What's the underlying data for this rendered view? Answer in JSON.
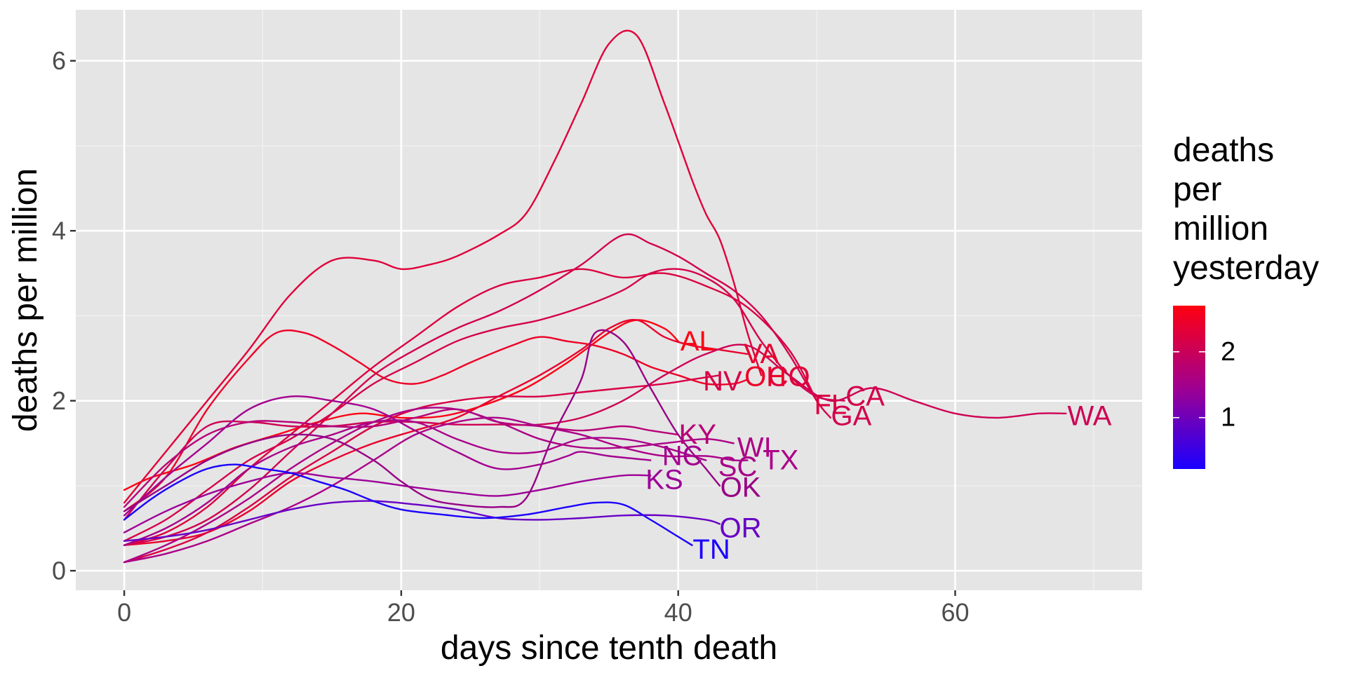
{
  "chart_data": {
    "type": "line",
    "xlabel": "days since tenth death",
    "ylabel": "deaths per million",
    "xlim": [
      -3.5,
      73.5
    ],
    "ylim": [
      -0.23,
      6.6
    ],
    "x_ticks": [
      0,
      20,
      40,
      60
    ],
    "y_ticks": [
      0,
      2,
      4,
      6
    ],
    "grid": true,
    "legend": {
      "title_lines": [
        "deaths",
        "per",
        "million",
        "yesterday"
      ],
      "type": "colorbar",
      "placement": "right",
      "range": [
        0.22,
        2.7
      ],
      "ticks": [
        1,
        2
      ],
      "color_low": "#1a00ff",
      "color_high": "#ff0010"
    },
    "series": [
      {
        "name": "AL",
        "color": "#fe0012",
        "x": [
          0,
          2,
          5,
          8,
          11,
          14,
          17,
          20,
          23,
          26,
          29,
          32,
          35,
          37,
          39,
          40
        ],
        "y": [
          0.95,
          1.1,
          1.25,
          1.45,
          1.6,
          1.75,
          1.85,
          1.8,
          1.82,
          1.95,
          2.15,
          2.45,
          2.8,
          2.95,
          2.85,
          2.7
        ]
      },
      {
        "name": "VA",
        "color": "#e8002e",
        "x": [
          0,
          3,
          6,
          9,
          12,
          15,
          18,
          21,
          24,
          27,
          30,
          33,
          35,
          37,
          39,
          41,
          43,
          45
        ],
        "y": [
          0.3,
          0.35,
          0.45,
          0.7,
          1.05,
          1.3,
          1.5,
          1.65,
          1.8,
          2.05,
          2.3,
          2.6,
          2.85,
          2.95,
          2.75,
          2.65,
          2.6,
          2.55
        ]
      },
      {
        "name": "OH",
        "color": "#ee0026",
        "x": [
          0,
          3,
          6,
          9,
          11,
          13,
          15,
          17,
          19,
          21,
          23,
          25,
          28,
          30,
          32,
          34,
          36,
          38,
          40,
          42,
          44,
          45
        ],
        "y": [
          0.7,
          1.1,
          1.9,
          2.5,
          2.8,
          2.8,
          2.65,
          2.45,
          2.25,
          2.2,
          2.3,
          2.45,
          2.65,
          2.75,
          2.7,
          2.65,
          2.55,
          2.4,
          2.3,
          2.2,
          2.2,
          2.25
        ]
      },
      {
        "name": "CO",
        "color": "#e0003a",
        "x": [
          0,
          3,
          6,
          9,
          12,
          15,
          18,
          20,
          22,
          24,
          27,
          29,
          31,
          33,
          35,
          37,
          39,
          41,
          42,
          43,
          44,
          45,
          46
        ],
        "y": [
          0.8,
          1.4,
          2.0,
          2.6,
          3.25,
          3.65,
          3.65,
          3.55,
          3.6,
          3.7,
          3.95,
          4.2,
          4.8,
          5.5,
          6.2,
          6.3,
          5.5,
          4.6,
          4.2,
          3.9,
          3.4,
          2.8,
          2.3
        ]
      },
      {
        "name": "NV",
        "color": "#d80045",
        "x": [
          0,
          3,
          6,
          9,
          12,
          15,
          18,
          21,
          24,
          27,
          30,
          33,
          36,
          39,
          41,
          43
        ],
        "y": [
          0.1,
          0.25,
          0.45,
          0.75,
          1.1,
          1.4,
          1.7,
          1.9,
          2.0,
          2.05,
          2.05,
          2.1,
          2.15,
          2.2,
          2.25,
          2.3
        ]
      },
      {
        "name": "FL",
        "color": "#db0040",
        "x": [
          0,
          3,
          6,
          9,
          12,
          15,
          18,
          21,
          24,
          27,
          30,
          33,
          36,
          39,
          42,
          45,
          48,
          50
        ],
        "y": [
          0.3,
          0.45,
          0.75,
          1.2,
          1.6,
          2.0,
          2.4,
          2.75,
          3.1,
          3.35,
          3.45,
          3.55,
          3.45,
          3.5,
          3.35,
          3.1,
          2.6,
          2.0
        ]
      },
      {
        "name": "CA",
        "color": "#d4004b",
        "x": [
          0,
          3,
          6,
          9,
          12,
          15,
          18,
          21,
          24,
          27,
          30,
          33,
          36,
          38,
          40,
          42,
          44,
          46,
          48,
          50,
          52
        ],
        "y": [
          0.35,
          0.6,
          0.95,
          1.3,
          1.55,
          1.85,
          2.2,
          2.45,
          2.7,
          2.85,
          2.95,
          3.1,
          3.3,
          3.5,
          3.55,
          3.45,
          3.2,
          2.7,
          2.3,
          2.05,
          2.0
        ]
      },
      {
        "name": "GA",
        "color": "#d2004e",
        "x": [
          0,
          3,
          6,
          9,
          12,
          15,
          18,
          21,
          24,
          27,
          30,
          33,
          36,
          38,
          40,
          42,
          44,
          46,
          48,
          50,
          51
        ],
        "y": [
          0.3,
          0.4,
          0.6,
          0.95,
          1.4,
          1.85,
          2.3,
          2.6,
          2.85,
          3.05,
          3.3,
          3.6,
          3.95,
          3.85,
          3.7,
          3.5,
          3.3,
          3.0,
          2.55,
          2.0,
          1.8
        ]
      },
      {
        "name": "WA",
        "color": "#ce0054",
        "x": [
          0,
          3,
          6,
          9,
          12,
          15,
          18,
          21,
          24,
          27,
          30,
          33,
          36,
          39,
          42,
          45,
          48,
          51,
          54,
          57,
          60,
          63,
          66,
          68
        ],
        "y": [
          0.6,
          1.2,
          1.7,
          1.75,
          1.7,
          1.7,
          1.75,
          1.75,
          1.72,
          1.72,
          1.72,
          1.8,
          2.0,
          2.3,
          2.55,
          2.65,
          2.3,
          2.0,
          2.15,
          2.0,
          1.85,
          1.8,
          1.85,
          1.85
        ]
      },
      {
        "name": "KY",
        "color": "#b70077",
        "x": [
          0,
          3,
          6,
          9,
          12,
          15,
          18,
          21,
          24,
          27,
          30,
          33,
          36,
          38,
          40
        ],
        "y": [
          0.75,
          1.25,
          1.6,
          1.75,
          1.75,
          1.7,
          1.7,
          1.8,
          1.9,
          1.75,
          1.7,
          1.65,
          1.7,
          1.65,
          1.6
        ]
      },
      {
        "name": "WI",
        "color": "#ad0085",
        "x": [
          0,
          3,
          6,
          9,
          12,
          15,
          18,
          21,
          24,
          27,
          30,
          33,
          36,
          39,
          42,
          44
        ],
        "y": [
          0.1,
          0.3,
          0.55,
          0.85,
          1.2,
          1.5,
          1.75,
          1.9,
          1.9,
          1.75,
          1.55,
          1.45,
          1.45,
          1.5,
          1.55,
          1.5
        ]
      },
      {
        "name": "TX",
        "color": "#ab0088",
        "x": [
          0,
          3,
          6,
          9,
          12,
          15,
          18,
          21,
          24,
          27,
          30,
          33,
          36,
          39,
          42,
          44,
          45
        ],
        "y": [
          0.1,
          0.2,
          0.35,
          0.55,
          0.75,
          1.0,
          1.3,
          1.6,
          1.75,
          1.8,
          1.7,
          1.6,
          1.45,
          1.35,
          1.35,
          1.3,
          1.3
        ]
      },
      {
        "name": "SC",
        "color": "#a90089",
        "x": [
          0,
          3,
          6,
          9,
          12,
          15,
          18,
          21,
          24,
          27,
          30,
          33,
          36,
          39,
          42
        ],
        "y": [
          0.3,
          0.5,
          0.8,
          1.2,
          1.45,
          1.6,
          1.75,
          1.75,
          1.55,
          1.4,
          1.4,
          1.55,
          1.55,
          1.45,
          1.3
        ]
      },
      {
        "name": "NC",
        "color": "#a4008f",
        "x": [
          0,
          3,
          6,
          9,
          12,
          15,
          18,
          21,
          24,
          27,
          30,
          32,
          33,
          35,
          38
        ],
        "y": [
          0.65,
          1.1,
          1.5,
          1.9,
          2.05,
          2.0,
          1.9,
          1.65,
          1.4,
          1.2,
          1.25,
          1.35,
          1.4,
          1.35,
          1.3
        ]
      },
      {
        "name": "KS",
        "color": "#9d0097",
        "x": [
          0,
          3,
          6,
          9,
          12,
          15,
          18,
          21,
          24,
          27,
          30,
          33,
          36,
          38
        ],
        "y": [
          0.45,
          0.7,
          0.9,
          1.05,
          1.15,
          1.1,
          1.05,
          0.98,
          0.92,
          0.88,
          0.95,
          1.05,
          1.12,
          1.12
        ]
      },
      {
        "name": "OK",
        "color": "#970085",
        "x": [
          0,
          3,
          6,
          9,
          12,
          15,
          18,
          20,
          22,
          24,
          27,
          29,
          31,
          33,
          34,
          36,
          38,
          40,
          42,
          43
        ],
        "y": [
          0.7,
          1.0,
          1.3,
          1.5,
          1.6,
          1.55,
          1.3,
          1.05,
          0.85,
          0.78,
          0.75,
          0.85,
          1.6,
          2.25,
          2.8,
          2.7,
          2.15,
          1.6,
          1.2,
          1.0
        ]
      },
      {
        "name": "OR",
        "color": "#6800c5",
        "x": [
          0,
          3,
          6,
          9,
          12,
          15,
          18,
          21,
          24,
          27,
          30,
          33,
          36,
          39,
          42,
          43
        ],
        "y": [
          0.35,
          0.4,
          0.48,
          0.6,
          0.72,
          0.8,
          0.82,
          0.78,
          0.72,
          0.62,
          0.6,
          0.62,
          0.65,
          0.65,
          0.6,
          0.55
        ]
      },
      {
        "name": "TN",
        "color": "#1a00fe",
        "x": [
          0,
          2,
          4,
          6,
          8,
          10,
          12,
          14,
          16,
          18,
          20,
          23,
          26,
          29,
          32,
          34,
          36,
          38,
          40,
          41
        ],
        "y": [
          0.6,
          0.85,
          1.05,
          1.2,
          1.25,
          1.2,
          1.15,
          1.05,
          0.95,
          0.82,
          0.72,
          0.66,
          0.62,
          0.66,
          0.75,
          0.8,
          0.78,
          0.6,
          0.4,
          0.3
        ]
      }
    ],
    "labels": [
      {
        "text": "AL",
        "x": 41.4,
        "y": 2.7,
        "color": "#fe0012"
      },
      {
        "text": "VA",
        "x": 46.0,
        "y": 2.55,
        "color": "#e8002e"
      },
      {
        "text": "OH",
        "x": 46.3,
        "y": 2.28,
        "color": "#ee0026"
      },
      {
        "text": "CO",
        "x": 48.0,
        "y": 2.28,
        "color": "#e0003a"
      },
      {
        "text": "NV",
        "x": 43.2,
        "y": 2.23,
        "color": "#d80045"
      },
      {
        "text": "FL",
        "x": 51.0,
        "y": 1.95,
        "color": "#db0040"
      },
      {
        "text": "CA",
        "x": 53.5,
        "y": 2.05,
        "color": "#d4004b"
      },
      {
        "text": "GA",
        "x": 52.5,
        "y": 1.82,
        "color": "#d2004e"
      },
      {
        "text": "WA",
        "x": 69.7,
        "y": 1.82,
        "color": "#ce0054"
      },
      {
        "text": "KY",
        "x": 41.4,
        "y": 1.6,
        "color": "#b70077"
      },
      {
        "text": "WI",
        "x": 45.5,
        "y": 1.45,
        "color": "#ad0085"
      },
      {
        "text": "TX",
        "x": 47.4,
        "y": 1.3,
        "color": "#ab0088"
      },
      {
        "text": "SC",
        "x": 44.3,
        "y": 1.22,
        "color": "#a90089"
      },
      {
        "text": "NC",
        "x": 40.3,
        "y": 1.35,
        "color": "#a4008f"
      },
      {
        "text": "KS",
        "x": 39.0,
        "y": 1.07,
        "color": "#9d0097"
      },
      {
        "text": "OK",
        "x": 44.5,
        "y": 0.98,
        "color": "#970085"
      },
      {
        "text": "OR",
        "x": 44.5,
        "y": 0.5,
        "color": "#6800c5"
      },
      {
        "text": "TN",
        "x": 42.4,
        "y": 0.25,
        "color": "#1a00fe"
      }
    ]
  }
}
